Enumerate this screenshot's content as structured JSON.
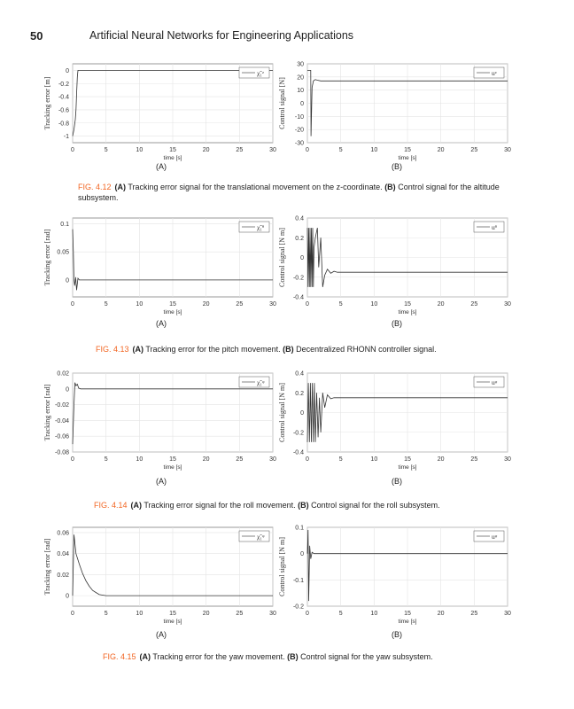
{
  "header": {
    "page_number": "50",
    "book_title": "Artificial Neural Networks for Engineering Applications"
  },
  "figures": [
    {
      "number": "FIG. 4.12",
      "caption_a_label": "(A)",
      "caption_a": " Tracking error signal for the translational movement on the z-coordinate. ",
      "caption_b_label": "(B)",
      "caption_b": " Control signal for the altitude subsystem.",
      "sub_a": "(A)",
      "sub_b": "(B)"
    },
    {
      "number": "FIG. 4.13",
      "caption_a_label": "(A)",
      "caption_a": " Tracking error for the pitch movement. ",
      "caption_b_label": "(B)",
      "caption_b": " Decentralized RHONN controller signal.",
      "sub_a": "(A)",
      "sub_b": "(B)"
    },
    {
      "number": "FIG. 4.14",
      "caption_a_label": "(A)",
      "caption_a": " Tracking error signal for the roll movement. ",
      "caption_b_label": "(B)",
      "caption_b": " Control signal for the roll subsystem.",
      "sub_a": "(A)",
      "sub_b": "(B)"
    },
    {
      "number": "FIG. 4.15",
      "caption_a_label": "(A)",
      "caption_a": " Tracking error for the yaw movement. ",
      "caption_b_label": "(B)",
      "caption_b": " Control signal for the yaw subsystem.",
      "sub_a": "(A)",
      "sub_b": "(B)"
    }
  ],
  "chart_data": [
    {
      "type": "line",
      "figure": "4.12A",
      "xlabel": "time [s]",
      "ylabel": "Tracking error [m]",
      "legend": "χ̃₁ᶻ",
      "xlim": [
        0,
        30
      ],
      "ylim": [
        -1.1,
        0.1
      ],
      "xticks": [
        0,
        5,
        10,
        15,
        20,
        25,
        30
      ],
      "yticks": [
        -1,
        -0.8,
        -0.6,
        -0.4,
        -0.2,
        0
      ],
      "grid": true,
      "legend_placement": "top-right",
      "x": [
        0,
        0.2,
        0.4,
        0.5,
        0.6,
        0.7,
        0.8,
        30
      ],
      "y": [
        -1,
        -0.9,
        -0.75,
        -0.6,
        -0.35,
        -0.1,
        0,
        0
      ]
    },
    {
      "type": "line",
      "figure": "4.12B",
      "xlabel": "time [s]",
      "ylabel": "Control signal [N]",
      "legend": "uᶻ",
      "xlim": [
        0,
        30
      ],
      "ylim": [
        -30,
        30
      ],
      "xticks": [
        0,
        5,
        10,
        15,
        20,
        25,
        30
      ],
      "yticks": [
        -30,
        -20,
        -10,
        0,
        10,
        20,
        30
      ],
      "grid": true,
      "legend_placement": "top-right",
      "x": [
        0,
        0.5,
        0.55,
        0.7,
        0.9,
        1.2,
        1.5,
        2,
        30
      ],
      "y": [
        25,
        25,
        -25,
        12,
        17,
        18,
        17.5,
        17,
        17
      ]
    },
    {
      "type": "line",
      "figure": "4.13A",
      "xlabel": "time [s]",
      "ylabel": "Tracking error [rad]",
      "legend": "χ̃₁ᶿ",
      "xlim": [
        0,
        30
      ],
      "ylim": [
        -0.03,
        0.11
      ],
      "xticks": [
        0,
        5,
        10,
        15,
        20,
        25,
        30
      ],
      "yticks": [
        0,
        0.05,
        0.1
      ],
      "grid": true,
      "legend_placement": "top-right",
      "x": [
        0,
        0.1,
        0.2,
        0.3,
        0.45,
        0.6,
        0.8,
        1,
        30
      ],
      "y": [
        0.09,
        0.05,
        0.0,
        -0.01,
        0.005,
        -0.018,
        0.003,
        0,
        0
      ]
    },
    {
      "type": "line",
      "figure": "4.13B",
      "xlabel": "time [s]",
      "ylabel": "Control signal [N m]",
      "legend": "uᶿ",
      "xlim": [
        0,
        30
      ],
      "ylim": [
        -0.4,
        0.4
      ],
      "xticks": [
        0,
        5,
        10,
        15,
        20,
        25,
        30
      ],
      "yticks": [
        -0.4,
        -0.2,
        0,
        0.2,
        0.4
      ],
      "grid": true,
      "legend_placement": "top-right",
      "x": [
        0,
        0.1,
        0.2,
        0.3,
        0.4,
        0.5,
        0.6,
        0.7,
        0.8,
        0.9,
        1.0,
        1.2,
        1.5,
        1.7,
        2.0,
        2.3,
        2.6,
        3,
        3.5,
        4,
        4.5,
        30
      ],
      "y": [
        0.3,
        -0.3,
        0.3,
        -0.3,
        0.3,
        -0.3,
        0.3,
        -0.3,
        0.3,
        -0.3,
        0.1,
        0.2,
        0.3,
        -0.1,
        0.2,
        -0.3,
        -0.18,
        -0.12,
        -0.16,
        -0.14,
        -0.15,
        -0.15
      ]
    },
    {
      "type": "line",
      "figure": "4.14A",
      "xlabel": "time [s]",
      "ylabel": "Tracking error [rad]",
      "legend": "χ̃₁ᵠ",
      "xlim": [
        0,
        30
      ],
      "ylim": [
        -0.08,
        0.02
      ],
      "xticks": [
        0,
        5,
        10,
        15,
        20,
        25,
        30
      ],
      "yticks": [
        -0.08,
        -0.06,
        -0.04,
        -0.02,
        0,
        0.02
      ],
      "grid": true,
      "legend_placement": "top-right",
      "x": [
        0,
        0.2,
        0.35,
        0.5,
        0.7,
        0.9,
        1.2,
        30
      ],
      "y": [
        -0.07,
        -0.02,
        0.008,
        0.004,
        0.006,
        0.001,
        0,
        0
      ]
    },
    {
      "type": "line",
      "figure": "4.14B",
      "xlabel": "time [s]",
      "ylabel": "Control signal [N m]",
      "legend": "uᵠ",
      "xlim": [
        0,
        30
      ],
      "ylim": [
        -0.4,
        0.4
      ],
      "xticks": [
        0,
        5,
        10,
        15,
        20,
        25,
        30
      ],
      "yticks": [
        -0.4,
        -0.2,
        0,
        0.2,
        0.4
      ],
      "grid": true,
      "legend_placement": "top-right",
      "x": [
        0,
        0.15,
        0.3,
        0.45,
        0.6,
        0.75,
        0.9,
        1.05,
        1.2,
        1.4,
        1.6,
        1.8,
        2,
        2.3,
        2.6,
        3,
        3.5,
        4,
        30
      ],
      "y": [
        -0.3,
        0.3,
        -0.3,
        0.3,
        -0.3,
        0.3,
        -0.3,
        0.3,
        -0.3,
        0.2,
        -0.25,
        0.15,
        -0.2,
        0.2,
        0.05,
        0.18,
        0.14,
        0.15,
        0.15
      ]
    },
    {
      "type": "line",
      "figure": "4.15A",
      "xlabel": "time [s]",
      "ylabel": "Tracking error [rad]",
      "legend": "χ̃₁ᵠ",
      "xlim": [
        0,
        30
      ],
      "ylim": [
        -0.01,
        0.065
      ],
      "xticks": [
        0,
        5,
        10,
        15,
        20,
        25,
        30
      ],
      "yticks": [
        0,
        0.02,
        0.04,
        0.06
      ],
      "grid": true,
      "legend_placement": "top-right",
      "x": [
        0,
        0.2,
        0.5,
        1,
        1.5,
        2,
        2.5,
        3,
        3.5,
        4,
        5,
        30
      ],
      "y": [
        0,
        0.058,
        0.04,
        0.03,
        0.021,
        0.014,
        0.009,
        0.005,
        0.003,
        0.001,
        0,
        0
      ]
    },
    {
      "type": "line",
      "figure": "4.15B",
      "xlabel": "time [s]",
      "ylabel": "Control signal [N m]",
      "legend": "uᵠ",
      "xlim": [
        0,
        30
      ],
      "ylim": [
        -0.2,
        0.1
      ],
      "xticks": [
        0,
        5,
        10,
        15,
        20,
        25,
        30
      ],
      "yticks": [
        -0.2,
        -0.1,
        0,
        0.1
      ],
      "grid": true,
      "legend_placement": "top-right",
      "x": [
        0,
        0.1,
        0.2,
        0.35,
        0.5,
        0.7,
        1,
        30
      ],
      "y": [
        0,
        0.09,
        -0.18,
        0.03,
        -0.02,
        0.005,
        0,
        0
      ]
    }
  ]
}
